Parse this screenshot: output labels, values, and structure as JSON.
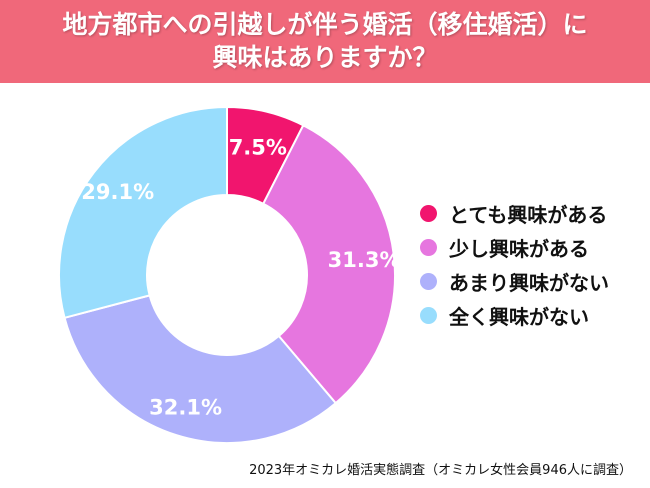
{
  "chart_data": {
    "type": "pie",
    "title_lines": [
      "地方都市への引越しが伴う婚活（移住婚活）に",
      "興味はありますか？"
    ],
    "categories": [
      "とても興味がある",
      "少し興味がある",
      "あまり興味がない",
      "全く興味がない"
    ],
    "values": [
      7.5,
      31.3,
      32.1,
      29.1
    ],
    "labels": [
      "7.5%",
      "31.3%",
      "32.1%",
      "29.1%"
    ],
    "colors": [
      "#F1156E",
      "#E676DF",
      "#AEB1FB",
      "#98DDFD"
    ],
    "donut": true,
    "legend_position": "right"
  },
  "source": "2023年オミカレ婚活実態調査（オミカレ女性会員946人に調査）"
}
